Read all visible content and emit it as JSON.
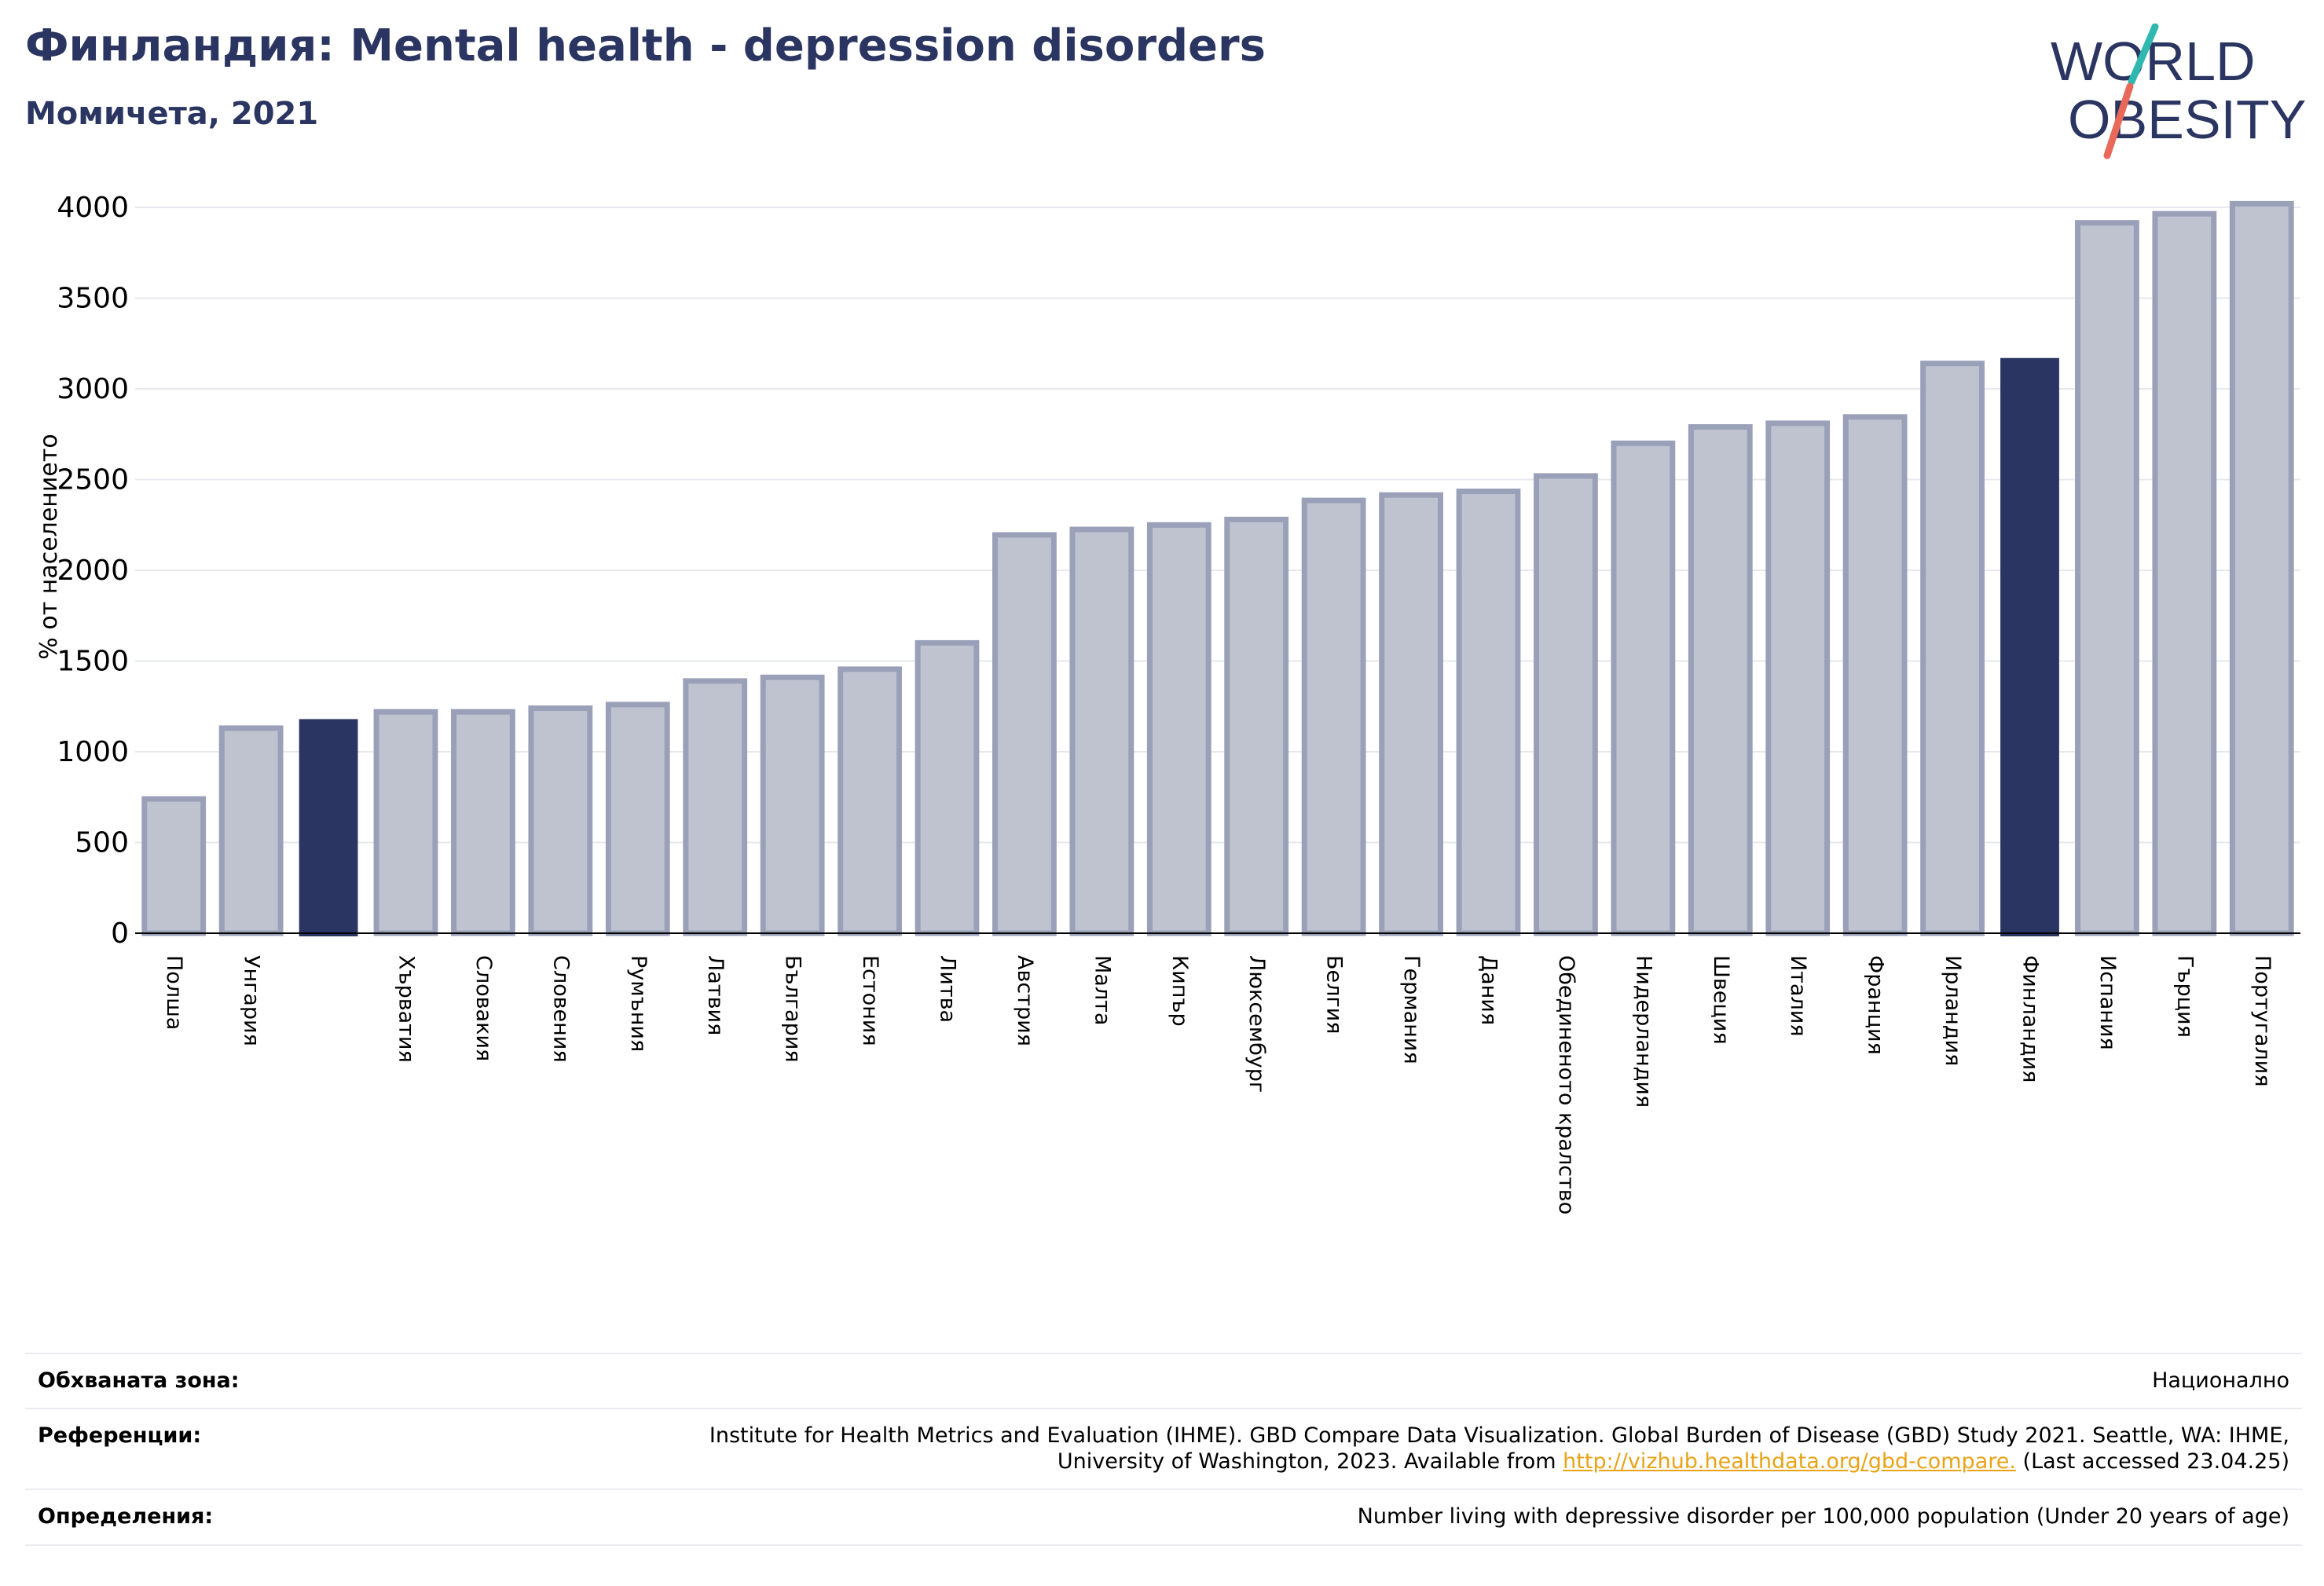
{
  "header": {
    "title": "Финландия: Mental health - depression disorders",
    "subtitle": "Момичета, 2021"
  },
  "logo": {
    "line1": "WORLD",
    "line2": "OBESITY",
    "color_text": "#2b3561",
    "color_slash_top": "#2fb8b0",
    "color_slash_bottom": "#e8685a"
  },
  "colors": {
    "highlight": "#2b3561",
    "bar_fill": "#bfc3d0",
    "bar_stroke": "#9aa0b8",
    "grid": "#e6e8ee",
    "axis": "#000000"
  },
  "chart_data": {
    "type": "bar",
    "ylabel": "% от населението",
    "xlabel": "",
    "ylim": [
      0,
      4000
    ],
    "yticks": [
      0,
      500,
      1000,
      1500,
      2000,
      2500,
      3000,
      3500,
      4000
    ],
    "grid": true,
    "categories": [
      "Полша",
      "Унгария",
      "",
      "Хърватия",
      "Словакия",
      "Словения",
      "Румъния",
      "Латвия",
      "България",
      "Естония",
      "Литва",
      "Австрия",
      "Малта",
      "Кипър",
      "Люксембург",
      "Белгия",
      "Германия",
      "Дания",
      "Обединеното кралство",
      "Нидерландия",
      "Швеция",
      "Италия",
      "Франция",
      "Ирландия",
      "Финландия",
      "Испания",
      "Гърция",
      "Португалия"
    ],
    "values": [
      740,
      1130,
      1180,
      1220,
      1220,
      1240,
      1260,
      1390,
      1410,
      1455,
      1600,
      2195,
      2225,
      2250,
      2280,
      2385,
      2415,
      2435,
      2520,
      2700,
      2790,
      2810,
      2845,
      3140,
      3170,
      3915,
      3965,
      4020
    ],
    "highlighted": [
      2,
      24
    ]
  },
  "info": {
    "coverage_label": "Обхваната зона:",
    "coverage_value": "Национално",
    "references_label": "Референции:",
    "references_text_1": "Institute for Health Metrics and Evaluation (IHME). GBD Compare Data Visualization. Global Burden of Disease (GBD) Study 2021. Seattle, WA: IHME, University of Washington, 2023. Available from",
    "references_link": "http://vizhub.healthdata.org/gbd-compare.",
    "references_text_2": "(Last accessed 23.04.25)",
    "definitions_label": "Определения:",
    "definitions_value": "Number living with depressive disorder per 100,000 population (Under 20 years of age)"
  }
}
